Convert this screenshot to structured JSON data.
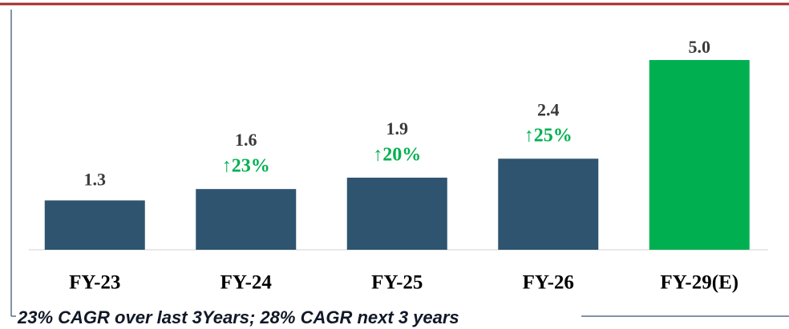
{
  "chart_data": {
    "type": "bar",
    "categories": [
      "FY-23",
      "FY-24",
      "FY-25",
      "FY-26",
      "FY-29(E)"
    ],
    "values": [
      1.3,
      1.6,
      1.9,
      2.4,
      5.0
    ],
    "value_labels": [
      "1.3",
      "1.6",
      "1.9",
      "2.4",
      "5.0"
    ],
    "colors": [
      "#2e5470",
      "#2e5470",
      "#2e5470",
      "#2e5470",
      "#00b050"
    ],
    "growth_values": [
      null,
      23,
      20,
      25,
      null
    ],
    "growth_value_labels": [
      null,
      "↑23%",
      "↑20%",
      "↑25%",
      null
    ],
    "growth_color": "#00b050",
    "ylim": [
      0,
      5
    ],
    "footnote": "23% CAGR over last 3Years; 28% CAGR next 3 years"
  }
}
